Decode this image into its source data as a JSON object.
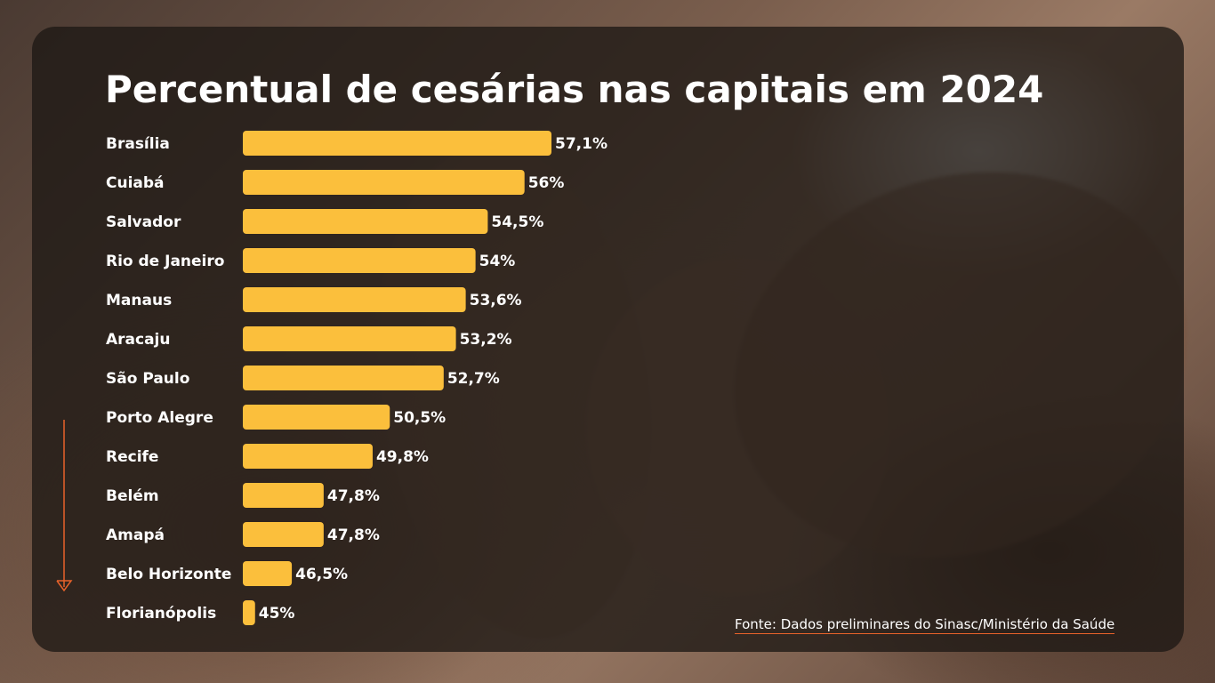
{
  "colors": {
    "bar": "#fbbf3c",
    "arrow": "#e8622a",
    "text": "#ffffff"
  },
  "chart_data": {
    "type": "bar",
    "orientation": "horizontal",
    "title": "Percentual de cesárias nas capitais em 2024",
    "categories": [
      "Brasília",
      "Cuiabá",
      "Salvador",
      "Rio de Janeiro",
      "Manaus",
      "Aracaju",
      "São Paulo",
      "Porto Alegre",
      "Recife",
      "Belém",
      "Amapá",
      "Belo Horizonte",
      "Florianópolis"
    ],
    "values": [
      57.1,
      56,
      54.5,
      54,
      53.6,
      53.2,
      52.7,
      50.5,
      49.8,
      47.8,
      47.8,
      46.5,
      45
    ],
    "value_labels": [
      "57,1%",
      "56%",
      "54,5%",
      "54%",
      "53,6%",
      "53,2%",
      "52,7%",
      "50,5%",
      "49,8%",
      "47,8%",
      "47,8%",
      "46,5%",
      "45%"
    ],
    "xlim": [
      44.5,
      57.1
    ],
    "grid": false,
    "legend": "none"
  },
  "source": "Fonte: Dados preliminares do Sinasc/Ministério da Saúde",
  "decor": {
    "arrow_icon": "arrow-down-icon"
  }
}
